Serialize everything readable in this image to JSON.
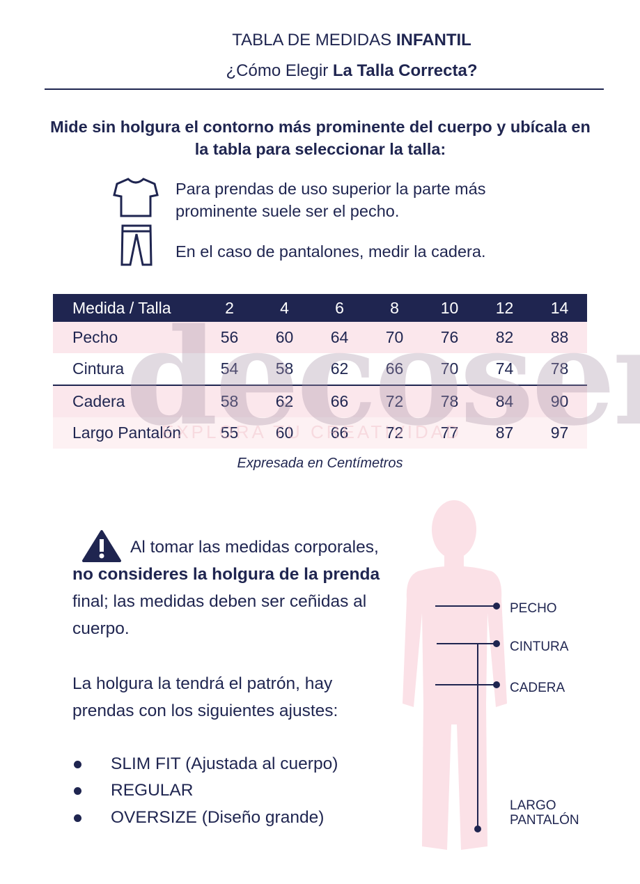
{
  "header": {
    "title_prefix": "TABLA DE MEDIDAS",
    "title_bold": "INFANTIL",
    "subtitle_prefix": "¿Cómo Elegir",
    "subtitle_bold": "La Talla Correcta?"
  },
  "instructions": {
    "heading": "Mide sin holgura el contorno más prominente del cuerpo y ubícala en la tabla para seleccionar la talla:",
    "items": [
      "Para prendas de uso superior la parte más prominente suele ser el pecho.",
      "En el caso de pantalones, medir la cadera."
    ]
  },
  "table": {
    "header": [
      "Medida / Talla",
      "2",
      "4",
      "6",
      "8",
      "10",
      "12",
      "14"
    ],
    "rows": [
      [
        "Pecho",
        56,
        60,
        64,
        70,
        76,
        82,
        88
      ],
      [
        "Cintura",
        54,
        58,
        62,
        66,
        70,
        74,
        78
      ],
      [
        "Cadera",
        58,
        62,
        66,
        72,
        78,
        84,
        90
      ],
      [
        "Largo Pantalón",
        55,
        60,
        66,
        72,
        77,
        87,
        97
      ]
    ],
    "note": "Expresada en Centímetros"
  },
  "watermark": {
    "brand": "decoser",
    "tagline": "EXPLORA TU CREATIVIDAD"
  },
  "warning": {
    "before": "Al tomar las medidas corporales,",
    "bold": "no consideres la holgura de la prenda",
    "after": "final; las medidas deben ser ceñidas al cuerpo."
  },
  "fit_intro": "La holgura la tendrá el patrón, hay prendas con los siguientes ajustes:",
  "fits": [
    "SLIM FIT (Ajustada al cuerpo)",
    "REGULAR",
    "OVERSIZE (Diseño grande)"
  ],
  "body_labels": [
    "PECHO",
    "CINTURA",
    "CADERA",
    "LARGO PANTALÓN"
  ]
}
